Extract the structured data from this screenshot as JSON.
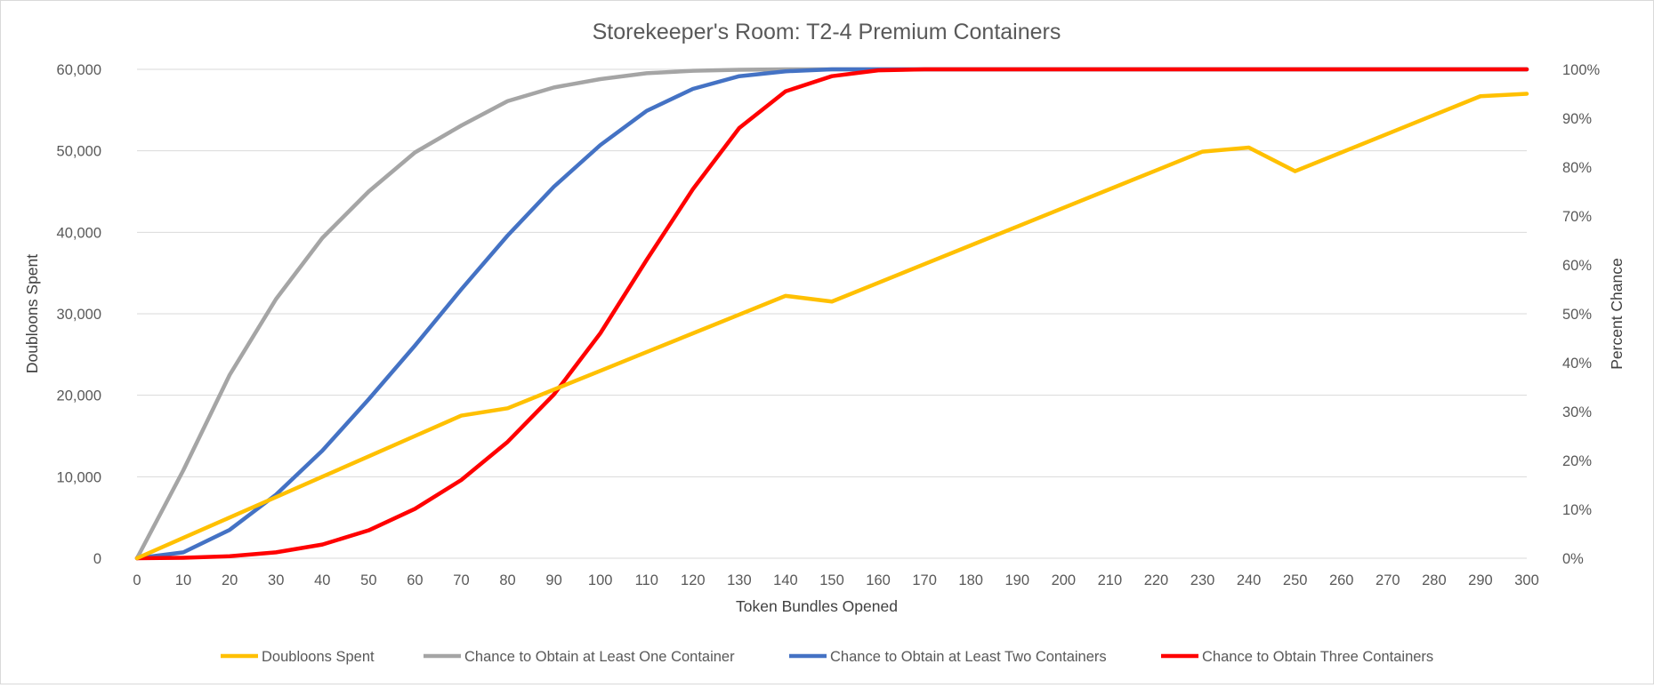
{
  "chart_data": {
    "type": "line",
    "title": "Storekeeper's Room: T2-4 Premium Containers",
    "xlabel": "Token Bundles Opened",
    "ylabel": "Doubloons Spent",
    "y2label": "Percent Chance",
    "x": [
      0,
      10,
      20,
      30,
      40,
      50,
      60,
      70,
      80,
      90,
      100,
      110,
      120,
      130,
      140,
      150,
      160,
      170,
      180,
      190,
      200,
      210,
      220,
      230,
      240,
      250,
      260,
      270,
      280,
      290,
      300
    ],
    "x_tick_labels": [
      "0",
      "10",
      "20",
      "30",
      "40",
      "50",
      "60",
      "70",
      "80",
      "90",
      "100",
      "110",
      "120",
      "130",
      "140",
      "150",
      "160",
      "170",
      "180",
      "190",
      "200",
      "210",
      "220",
      "230",
      "240",
      "250",
      "260",
      "270",
      "280",
      "290",
      "300"
    ],
    "ylim": [
      0,
      60000
    ],
    "y_ticks": [
      0,
      10000,
      20000,
      30000,
      40000,
      50000,
      60000
    ],
    "y_tick_labels": [
      "0",
      "10,000",
      "20,000",
      "30,000",
      "40,000",
      "50,000",
      "60,000"
    ],
    "y2lim": [
      0,
      100
    ],
    "y2_ticks": [
      0,
      10,
      20,
      30,
      40,
      50,
      60,
      70,
      80,
      90,
      100
    ],
    "y2_tick_labels": [
      "0%",
      "10%",
      "20%",
      "30%",
      "40%",
      "50%",
      "60%",
      "70%",
      "80%",
      "90%",
      "100%"
    ],
    "grid": "horizontal",
    "legend_position": "bottom",
    "series": [
      {
        "name": "Doubloons Spent",
        "axis": "left",
        "color": "#FFC000",
        "values": [
          0,
          2500,
          5000,
          7500,
          10000,
          12500,
          15000,
          17500,
          18400,
          20700,
          23000,
          25300,
          27600,
          29900,
          32200,
          31500,
          33800,
          36100,
          38400,
          40700,
          43000,
          45300,
          47600,
          49900,
          50400,
          47500,
          49800,
          52100,
          54400,
          56700,
          57000
        ]
      },
      {
        "name": "Chance to Obtain at Least One Container",
        "axis": "right",
        "color": "#A5A5A5",
        "values": [
          0,
          18,
          37.5,
          53,
          65.5,
          75,
          83,
          88.5,
          93.5,
          96.3,
          98,
          99.2,
          99.7,
          99.9,
          100,
          100,
          100,
          100,
          100,
          100,
          100,
          100,
          100,
          100,
          100,
          100,
          100,
          100,
          100,
          100,
          100
        ]
      },
      {
        "name": "Chance to Obtain at Least Two Containers",
        "axis": "right",
        "color": "#4472C4",
        "values": [
          0,
          1.2,
          5.8,
          13,
          22,
          32.5,
          43.5,
          55,
          66,
          76,
          84.5,
          91.5,
          96,
          98.6,
          99.6,
          100,
          100,
          100,
          100,
          100,
          100,
          100,
          100,
          100,
          100,
          100,
          100,
          100,
          100,
          100,
          100
        ]
      },
      {
        "name": "Chance to Obtain Three Containers",
        "axis": "right",
        "color": "#FF0000",
        "values": [
          0,
          0.1,
          0.4,
          1.2,
          2.8,
          5.7,
          10.1,
          16,
          23.8,
          33.5,
          46,
          61,
          75.5,
          88,
          95.5,
          98.6,
          99.8,
          100,
          100,
          100,
          100,
          100,
          100,
          100,
          100,
          100,
          100,
          100,
          100,
          100,
          100
        ]
      }
    ]
  }
}
